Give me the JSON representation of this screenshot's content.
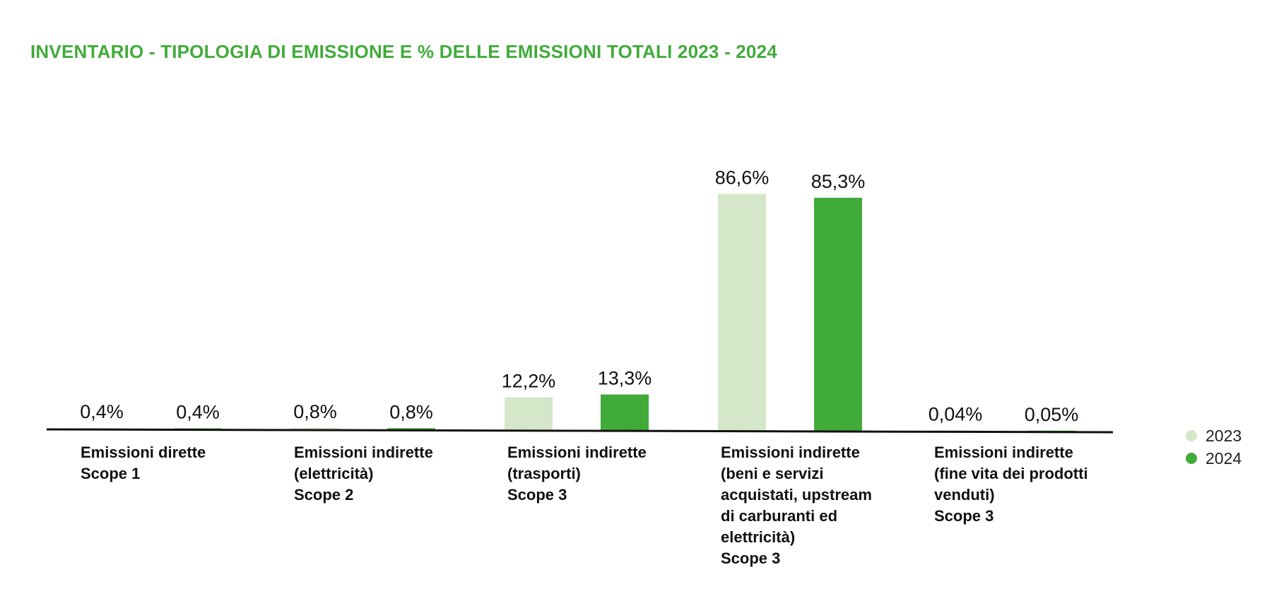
{
  "chart_data": {
    "type": "bar",
    "title": "INVENTARIO - TIPOLOGIA DI EMISSIONE E % DELLE EMISSIONI TOTALI 2023 - 2024",
    "categories": [
      [
        "Emissioni dirette",
        "Scope 1"
      ],
      [
        "Emissioni indirette",
        "(elettricità)",
        "Scope 2"
      ],
      [
        "Emissioni indirette",
        "(trasporti)",
        "Scope 3"
      ],
      [
        "Emissioni indirette",
        "(beni e servizi",
        "acquistati, upstream",
        "di carburanti ed",
        "elettricità)",
        "Scope 3"
      ],
      [
        "Emissioni indirette",
        "(fine vita dei prodotti",
        "venduti)",
        "Scope 3"
      ]
    ],
    "series": [
      {
        "name": "2023",
        "color": "#d4e8c9",
        "values": [
          0.4,
          0.8,
          12.2,
          86.6,
          0.04
        ],
        "labels": [
          "0,4%",
          "0,8%",
          "12,2%",
          "86,6%",
          "0,04%"
        ]
      },
      {
        "name": "2024",
        "color": "#41ab3a",
        "values": [
          0.4,
          0.8,
          13.3,
          85.3,
          0.05
        ],
        "labels": [
          "0,4%",
          "0,8%",
          "13,3%",
          "85,3%",
          "0,05%"
        ]
      }
    ],
    "ylim": [
      0,
      100
    ],
    "grid": false,
    "legend_position": "right"
  }
}
